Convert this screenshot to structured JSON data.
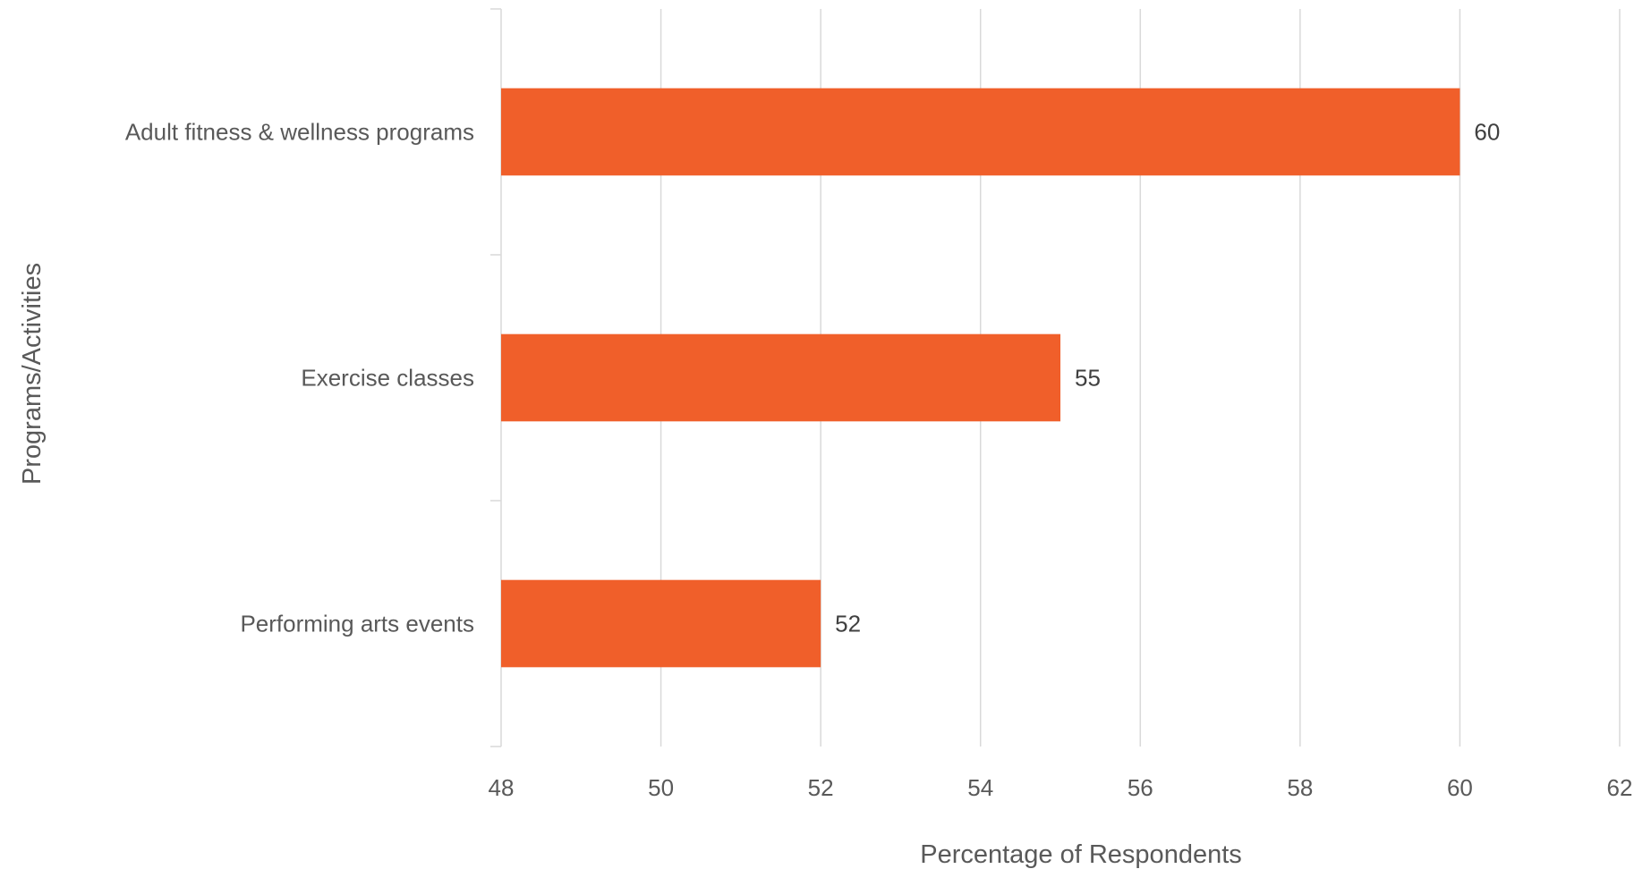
{
  "chart_data": {
    "type": "bar",
    "orientation": "horizontal",
    "categories": [
      "Adult fitness & wellness programs",
      "Exercise classes",
      "Performing arts events"
    ],
    "values": [
      60,
      55,
      52
    ],
    "title": "",
    "xlabel": "Percentage of Respondents",
    "ylabel": "Programs/Activities",
    "xlim": [
      48,
      62
    ],
    "xticks": [
      "48",
      "50",
      "52",
      "54",
      "56",
      "58",
      "60",
      "62"
    ],
    "data_labels": [
      "60",
      "55",
      "52"
    ],
    "bar_color": "#F05F2A",
    "grid": "vertical",
    "legend": "none"
  }
}
